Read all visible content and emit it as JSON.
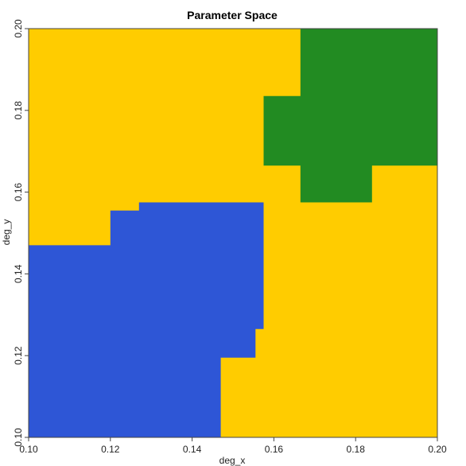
{
  "chart_data": {
    "type": "heatmap",
    "title": "Parameter Space",
    "xlabel": "deg_x",
    "ylabel": "deg_y",
    "xlim": [
      0.1,
      0.2
    ],
    "ylim": [
      0.1,
      0.2
    ],
    "x_ticks": [
      "0.10",
      "0.12",
      "0.14",
      "0.16",
      "0.18",
      "0.20"
    ],
    "y_ticks": [
      "0.10",
      "0.12",
      "0.14",
      "0.16",
      "0.18",
      "0.20"
    ],
    "grid": false,
    "colors": {
      "background": "#FFCC00",
      "blue": "#2E56D6",
      "green": "#228B22"
    },
    "regions": [
      {
        "color": "blue",
        "polygon": [
          [
            0.1,
            0.1
          ],
          [
            0.147,
            0.1
          ],
          [
            0.147,
            0.1195
          ],
          [
            0.1555,
            0.1195
          ],
          [
            0.1555,
            0.1265
          ],
          [
            0.1575,
            0.1265
          ],
          [
            0.1575,
            0.1575
          ],
          [
            0.127,
            0.1575
          ],
          [
            0.127,
            0.1555
          ],
          [
            0.12,
            0.1555
          ],
          [
            0.12,
            0.147
          ],
          [
            0.1,
            0.147
          ]
        ]
      },
      {
        "color": "green",
        "polygon": [
          [
            0.1665,
            0.2
          ],
          [
            0.2,
            0.2
          ],
          [
            0.2,
            0.1665
          ],
          [
            0.184,
            0.1665
          ],
          [
            0.184,
            0.1575
          ],
          [
            0.1665,
            0.1575
          ],
          [
            0.1665,
            0.1665
          ],
          [
            0.1575,
            0.1665
          ],
          [
            0.1575,
            0.1835
          ],
          [
            0.1665,
            0.1835
          ]
        ]
      }
    ]
  }
}
